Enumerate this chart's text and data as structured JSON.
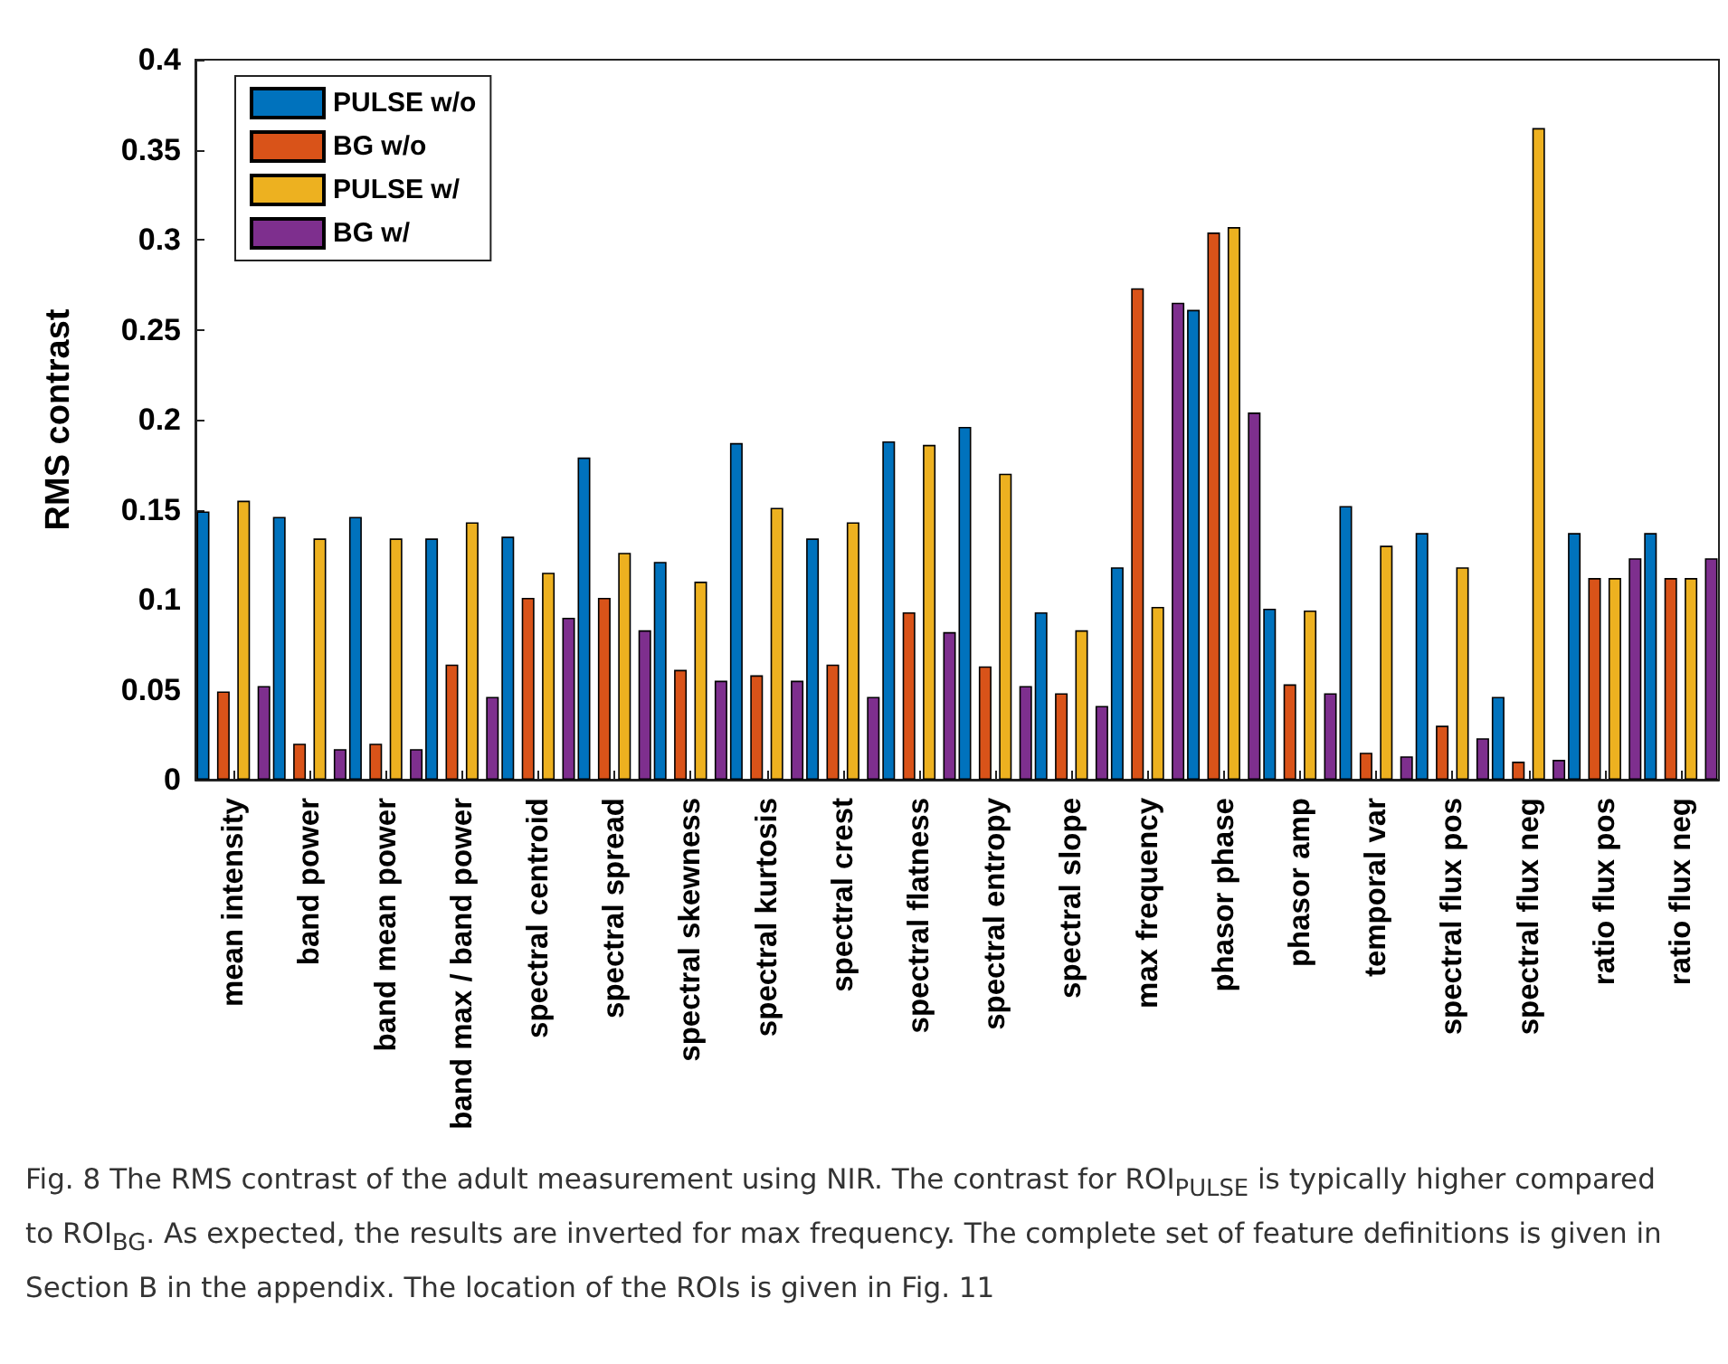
{
  "chart_data": {
    "type": "bar",
    "ylabel": "RMS contrast",
    "categories": [
      "mean intensity",
      "band power",
      "band mean power",
      "band max / band power",
      "spectral centroid",
      "spectral spread",
      "spectral skewness",
      "spectral kurtosis",
      "spectral crest",
      "spectral flatness",
      "spectral entropy",
      "spectral slope",
      "max frequency",
      "phasor phase",
      "phasor amp",
      "temporal var",
      "spectral flux pos",
      "spectral flux neg",
      "ratio flux pos",
      "ratio flux neg"
    ],
    "series": [
      {
        "name": "PULSE w/o",
        "color": "#0072bd",
        "values": [
          0.149,
          0.146,
          0.146,
          0.134,
          0.135,
          0.179,
          0.121,
          0.187,
          0.134,
          0.188,
          0.196,
          0.093,
          0.118,
          0.261,
          0.095,
          0.152,
          0.137,
          0.046,
          0.137,
          0.137
        ]
      },
      {
        "name": "BG w/o",
        "color": "#d95319",
        "values": [
          0.049,
          0.02,
          0.02,
          0.064,
          0.101,
          0.101,
          0.061,
          0.058,
          0.064,
          0.093,
          0.063,
          0.048,
          0.273,
          0.304,
          0.053,
          0.015,
          0.03,
          0.01,
          0.112,
          0.112
        ]
      },
      {
        "name": "PULSE w/",
        "color": "#edb120",
        "values": [
          0.155,
          0.134,
          0.134,
          0.143,
          0.115,
          0.126,
          0.11,
          0.151,
          0.143,
          0.186,
          0.17,
          0.083,
          0.096,
          0.307,
          0.094,
          0.13,
          0.118,
          0.362,
          0.112,
          0.112
        ]
      },
      {
        "name": "BG w/",
        "color": "#7e2f8e",
        "values": [
          0.052,
          0.017,
          0.017,
          0.046,
          0.09,
          0.083,
          0.055,
          0.055,
          0.046,
          0.082,
          0.052,
          0.041,
          0.265,
          0.204,
          0.048,
          0.013,
          0.023,
          0.011,
          0.123,
          0.123
        ]
      }
    ],
    "ylim": [
      0,
      0.4
    ],
    "yticks": [
      0,
      0.05,
      0.1,
      0.15,
      0.2,
      0.25,
      0.3,
      0.35,
      0.4
    ],
    "grid": false,
    "legend": "top left",
    "annotations": [
      "Fig. 8  The RMS contrast of the adult measurement using NIR. The contrast for ROI$_{PULSE}$ is typically higher compared to ROI$_{BG}$. As expected, the results are inverted for max frequency. The complete set of feature definitions is given in Section B in the appendix. The location of the ROIs is given in Fig. 11"
    ]
  }
}
